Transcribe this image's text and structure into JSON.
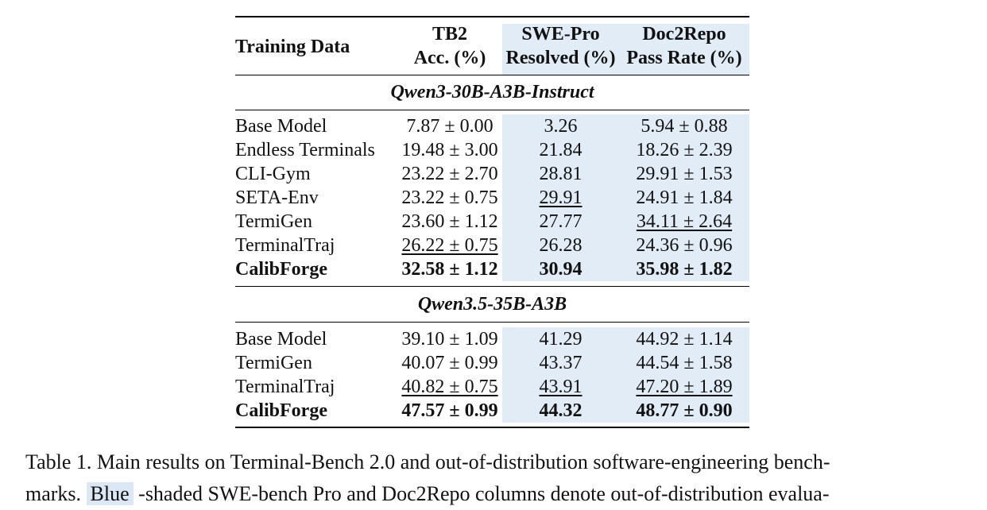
{
  "table": {
    "header": {
      "training_data": "Training Data",
      "tb2_line1": "TB2",
      "tb2_line2": "Acc. (%)",
      "swe_line1": "SWE-Pro",
      "swe_line2": "Resolved (%)",
      "doc_line1": "Doc2Repo",
      "doc_line2": "Pass Rate (%)"
    },
    "groups": [
      {
        "name": "Qwen3-30B-A3B-Instruct",
        "rows": [
          {
            "name": "Base Model",
            "tb2": "7.87 ± 0.00",
            "swe": "3.26",
            "doc": "5.94 ± 0.88"
          },
          {
            "name": "Endless Terminals",
            "tb2": "19.48 ± 3.00",
            "swe": "21.84",
            "doc": "18.26 ± 2.39"
          },
          {
            "name": "CLI-Gym",
            "tb2": "23.22 ± 2.70",
            "swe": "28.81",
            "doc": "29.91 ± 1.53"
          },
          {
            "name": "SETA-Env",
            "tb2": "23.22 ± 0.75",
            "swe": "29.91",
            "doc": "24.91 ± 1.84"
          },
          {
            "name": "TermiGen",
            "tb2": "23.60 ± 1.12",
            "swe": "27.77",
            "doc": "34.11 ± 2.64"
          },
          {
            "name": "TerminalTraj",
            "tb2": "26.22 ± 0.75",
            "swe": "26.28",
            "doc": "24.36 ± 0.96"
          },
          {
            "name": "CalibForge",
            "tb2": "32.58 ± 1.12",
            "swe": "30.94",
            "doc": "35.98 ± 1.82"
          }
        ]
      },
      {
        "name": "Qwen3.5-35B-A3B",
        "rows": [
          {
            "name": "Base Model",
            "tb2": "39.10 ± 1.09",
            "swe": "41.29",
            "doc": "44.92 ± 1.14"
          },
          {
            "name": "TermiGen",
            "tb2": "40.07 ± 0.99",
            "swe": "43.37",
            "doc": "44.54 ± 1.58"
          },
          {
            "name": "TerminalTraj",
            "tb2": "40.82 ± 0.75",
            "swe": "43.91",
            "doc": "47.20 ± 1.89"
          },
          {
            "name": "CalibForge",
            "tb2": "47.57 ± 0.99",
            "swe": "44.32",
            "doc": "48.77 ± 0.90"
          }
        ]
      }
    ]
  },
  "caption": {
    "line1": "Table 1. Main results on Terminal-Bench 2.0 and out-of-distribution software-engineering bench-",
    "line2_pre": "marks. ",
    "line2_highlight": "Blue",
    "line2_post": " -shaded SWE-bench Pro and Doc2Repo columns denote out-of-distribution evalua-"
  }
}
